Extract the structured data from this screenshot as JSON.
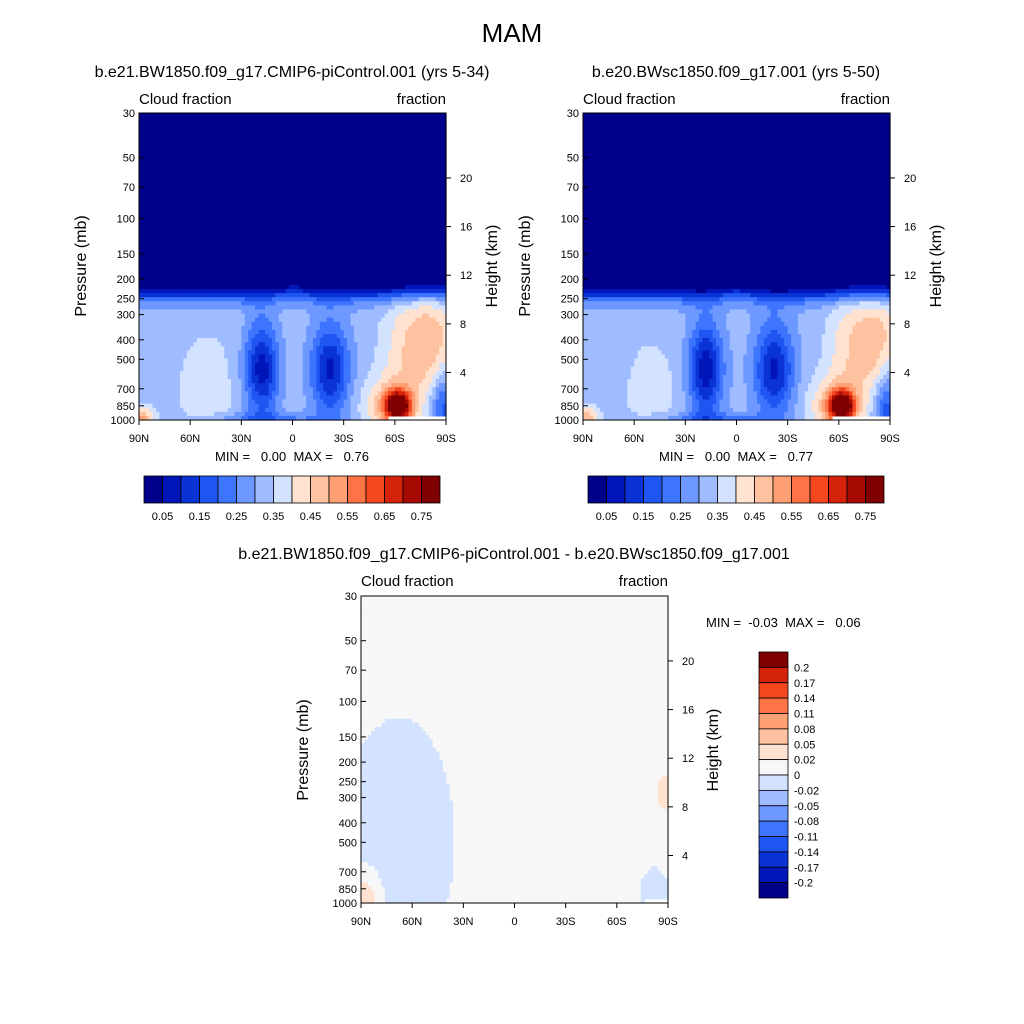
{
  "figure": {
    "title": "MAM"
  },
  "panels": [
    {
      "id": "model",
      "title": "b.e21.BW1850.f09_g17.CMIP6-piControl.001 (yrs 5-34)",
      "left_label": "Cloud fraction",
      "right_label": "fraction",
      "ylabel": "Pressure (mb)",
      "y2label": "Height (km)",
      "minmax": "MIN =   0.00  MAX =   0.76"
    },
    {
      "id": "obs",
      "title": "b.e20.BWsc1850.f09_g17.001 (yrs 5-50)",
      "left_label": "Cloud fraction",
      "right_label": "fraction",
      "ylabel": "Pressure (mb)",
      "y2label": "Height (km)",
      "minmax": "MIN =   0.00  MAX =   0.77"
    },
    {
      "id": "diff",
      "title": "b.e21.BW1850.f09_g17.CMIP6-piControl.001 - b.e20.BWsc1850.f09_g17.001",
      "left_label": "Cloud fraction",
      "right_label": "fraction",
      "ylabel": "Pressure (mb)",
      "y2label": "Height (km)",
      "minmax": "MIN =  -0.03  MAX =   0.06"
    }
  ],
  "chart_data": [
    {
      "type": "heatmap",
      "title": "b.e21.BW1850.f09_g17.CMIP6-piControl.001 (yrs 5-34)",
      "variable": "Cloud fraction",
      "units": "fraction",
      "xlabel": "",
      "ylabel": "Pressure (mb)",
      "y2label": "Height (km)",
      "x_ticks": [
        "90N",
        "60N",
        "30N",
        "0",
        "30S",
        "60S",
        "90S"
      ],
      "x_tick_values": [
        90,
        60,
        30,
        0,
        -30,
        -60,
        -90
      ],
      "y_ticks": [
        30,
        50,
        70,
        100,
        150,
        200,
        250,
        300,
        400,
        500,
        700,
        850,
        1000
      ],
      "y_log": true,
      "y_range": [
        30,
        1000
      ],
      "y2_ticks": [
        20,
        16,
        12,
        8,
        4
      ],
      "min": 0.0,
      "max": 0.76,
      "colorbar_levels": [
        0.05,
        0.1,
        0.15,
        0.2,
        0.25,
        0.3,
        0.35,
        0.4,
        0.45,
        0.5,
        0.55,
        0.6,
        0.65,
        0.7,
        0.75
      ],
      "colorbar_labels": [
        "0.05",
        "0.15",
        "0.25",
        "0.35",
        "0.45",
        "0.55",
        "0.65",
        "0.75"
      ],
      "colorbar_orientation": "horizontal"
    },
    {
      "type": "heatmap",
      "title": "b.e20.BWsc1850.f09_g17.001 (yrs 5-50)",
      "variable": "Cloud fraction",
      "units": "fraction",
      "xlabel": "",
      "ylabel": "Pressure (mb)",
      "y2label": "Height (km)",
      "x_ticks": [
        "90N",
        "60N",
        "30N",
        "0",
        "30S",
        "60S",
        "90S"
      ],
      "x_tick_values": [
        90,
        60,
        30,
        0,
        -30,
        -60,
        -90
      ],
      "y_ticks": [
        30,
        50,
        70,
        100,
        150,
        200,
        250,
        300,
        400,
        500,
        700,
        850,
        1000
      ],
      "y_log": true,
      "y_range": [
        30,
        1000
      ],
      "y2_ticks": [
        20,
        16,
        12,
        8,
        4
      ],
      "min": 0.0,
      "max": 0.77,
      "colorbar_levels": [
        0.05,
        0.1,
        0.15,
        0.2,
        0.25,
        0.3,
        0.35,
        0.4,
        0.45,
        0.5,
        0.55,
        0.6,
        0.65,
        0.7,
        0.75
      ],
      "colorbar_labels": [
        "0.05",
        "0.15",
        "0.25",
        "0.35",
        "0.45",
        "0.55",
        "0.65",
        "0.75"
      ],
      "colorbar_orientation": "horizontal"
    },
    {
      "type": "heatmap",
      "title": "b.e21.BW1850.f09_g17.CMIP6-piControl.001 - b.e20.BWsc1850.f09_g17.001",
      "variable": "Cloud fraction",
      "units": "fraction",
      "xlabel": "",
      "ylabel": "Pressure (mb)",
      "y2label": "Height (km)",
      "x_ticks": [
        "90N",
        "60N",
        "30N",
        "0",
        "30S",
        "60S",
        "90S"
      ],
      "x_tick_values": [
        90,
        60,
        30,
        0,
        -30,
        -60,
        -90
      ],
      "y_ticks": [
        30,
        50,
        70,
        100,
        150,
        200,
        250,
        300,
        400,
        500,
        700,
        850,
        1000
      ],
      "y_log": true,
      "y_range": [
        30,
        1000
      ],
      "y2_ticks": [
        20,
        16,
        12,
        8,
        4
      ],
      "min": -0.03,
      "max": 0.06,
      "colorbar_levels": [
        -0.2,
        -0.17,
        -0.14,
        -0.11,
        -0.08,
        -0.05,
        -0.02,
        0,
        0.02,
        0.05,
        0.08,
        0.11,
        0.14,
        0.17,
        0.2
      ],
      "colorbar_labels": [
        "0.2",
        "0.17",
        "0.14",
        "0.11",
        "0.08",
        "0.05",
        "0.02",
        "0",
        "-0.02",
        "-0.05",
        "-0.08",
        "-0.11",
        "-0.14",
        "-0.17",
        "-0.2"
      ],
      "colorbar_orientation": "vertical"
    }
  ],
  "colors": {
    "scale": [
      "#00008a",
      "#0016b8",
      "#0a33d6",
      "#1f55f0",
      "#3e75ff",
      "#6d98ff",
      "#9ebcff",
      "#d3e3ff",
      "#ffe2cf",
      "#ffc2a0",
      "#ff9f74",
      "#ff7346",
      "#f4471e",
      "#d4230a",
      "#a80b03",
      "#7f0000"
    ],
    "diff_scale": [
      "#00008a",
      "#0016b8",
      "#0a33d6",
      "#1f55f0",
      "#3e75ff",
      "#6d98ff",
      "#9ebcff",
      "#d3e3ff",
      "#f7f7f7",
      "#ffe2cf",
      "#ffc2a0",
      "#ff9f74",
      "#ff7346",
      "#f4471e",
      "#d4230a",
      "#7f0000"
    ]
  }
}
